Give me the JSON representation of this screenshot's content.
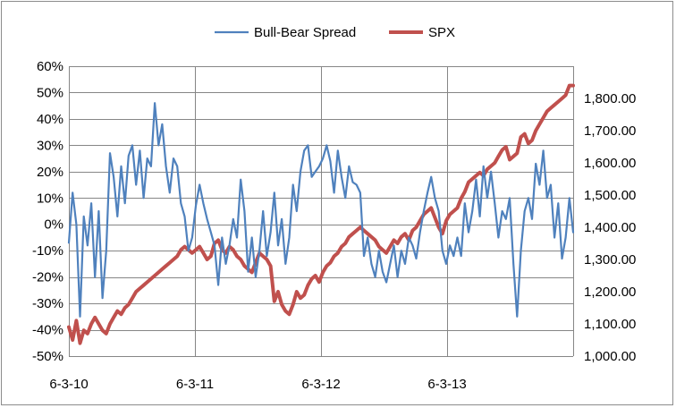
{
  "chart_data": {
    "type": "line",
    "title": "",
    "legend": {
      "placement": "top-center"
    },
    "grid": true,
    "x_labels": [
      "6-3-10",
      "6-3-11",
      "6-3-12",
      "6-3-13"
    ],
    "y_left": {
      "ylim": [
        -50,
        60
      ],
      "tick_values": [
        60,
        50,
        40,
        30,
        20,
        10,
        0,
        -10,
        -20,
        -30,
        -40,
        -50
      ],
      "tick_labels": [
        "60%",
        "50%",
        "40%",
        "30%",
        "20%",
        "10%",
        "0%",
        "-10%",
        "-20%",
        "-30%",
        "-40%",
        "-50%"
      ]
    },
    "y_right": {
      "ylim": [
        1000,
        1900
      ],
      "tick_values": [
        1800,
        1700,
        1600,
        1500,
        1400,
        1300,
        1200,
        1100,
        1000
      ],
      "tick_labels": [
        "1,800.00",
        "1,700.00",
        "1,600.00",
        "1,500.00",
        "1,400.00",
        "1,300.00",
        "1,200.00",
        "1,100.00",
        "1,000.00"
      ]
    },
    "x_range": [
      0,
      4.05
    ],
    "series": [
      {
        "name": "Bull-Bear Spread",
        "axis": "left",
        "color": "#4f81bd",
        "points": [
          [
            0.0,
            -7
          ],
          [
            0.03,
            12
          ],
          [
            0.06,
            0
          ],
          [
            0.09,
            -35
          ],
          [
            0.12,
            3
          ],
          [
            0.15,
            -8
          ],
          [
            0.18,
            8
          ],
          [
            0.21,
            -20
          ],
          [
            0.24,
            5
          ],
          [
            0.27,
            -28
          ],
          [
            0.3,
            -10
          ],
          [
            0.33,
            27
          ],
          [
            0.36,
            18
          ],
          [
            0.39,
            3
          ],
          [
            0.42,
            22
          ],
          [
            0.45,
            8
          ],
          [
            0.48,
            26
          ],
          [
            0.51,
            30
          ],
          [
            0.54,
            15
          ],
          [
            0.57,
            28
          ],
          [
            0.6,
            10
          ],
          [
            0.63,
            25
          ],
          [
            0.66,
            22
          ],
          [
            0.69,
            46
          ],
          [
            0.72,
            30
          ],
          [
            0.75,
            38
          ],
          [
            0.78,
            22
          ],
          [
            0.81,
            12
          ],
          [
            0.84,
            25
          ],
          [
            0.87,
            22
          ],
          [
            0.9,
            8
          ],
          [
            0.93,
            3
          ],
          [
            0.96,
            -10
          ],
          [
            0.99,
            -5
          ],
          [
            1.02,
            7
          ],
          [
            1.05,
            15
          ],
          [
            1.08,
            8
          ],
          [
            1.11,
            2
          ],
          [
            1.14,
            -3
          ],
          [
            1.17,
            -8
          ],
          [
            1.2,
            -23
          ],
          [
            1.23,
            -5
          ],
          [
            1.26,
            -15
          ],
          [
            1.29,
            -8
          ],
          [
            1.32,
            2
          ],
          [
            1.35,
            -5
          ],
          [
            1.38,
            17
          ],
          [
            1.41,
            5
          ],
          [
            1.44,
            -18
          ],
          [
            1.47,
            -5
          ],
          [
            1.5,
            -20
          ],
          [
            1.53,
            -10
          ],
          [
            1.56,
            5
          ],
          [
            1.59,
            -12
          ],
          [
            1.62,
            -3
          ],
          [
            1.65,
            12
          ],
          [
            1.68,
            -8
          ],
          [
            1.71,
            2
          ],
          [
            1.74,
            -15
          ],
          [
            1.77,
            -5
          ],
          [
            1.8,
            15
          ],
          [
            1.83,
            5
          ],
          [
            1.86,
            20
          ],
          [
            1.89,
            28
          ],
          [
            1.92,
            30
          ],
          [
            1.95,
            18
          ],
          [
            1.98,
            20
          ],
          [
            2.01,
            22
          ],
          [
            2.04,
            25
          ],
          [
            2.07,
            30
          ],
          [
            2.1,
            24
          ],
          [
            2.13,
            12
          ],
          [
            2.16,
            28
          ],
          [
            2.19,
            18
          ],
          [
            2.22,
            10
          ],
          [
            2.25,
            22
          ],
          [
            2.28,
            16
          ],
          [
            2.31,
            15
          ],
          [
            2.34,
            12
          ],
          [
            2.37,
            -12
          ],
          [
            2.4,
            -5
          ],
          [
            2.43,
            -15
          ],
          [
            2.46,
            -20
          ],
          [
            2.49,
            -10
          ],
          [
            2.52,
            -18
          ],
          [
            2.55,
            -22
          ],
          [
            2.58,
            -15
          ],
          [
            2.61,
            -8
          ],
          [
            2.64,
            -20
          ],
          [
            2.67,
            -10
          ],
          [
            2.7,
            -15
          ],
          [
            2.73,
            -5
          ],
          [
            2.76,
            -8
          ],
          [
            2.79,
            -13
          ],
          [
            2.82,
            -3
          ],
          [
            2.85,
            5
          ],
          [
            2.88,
            12
          ],
          [
            2.91,
            18
          ],
          [
            2.94,
            10
          ],
          [
            2.97,
            5
          ],
          [
            3.0,
            -10
          ],
          [
            3.03,
            -15
          ],
          [
            3.06,
            -8
          ],
          [
            3.09,
            -12
          ],
          [
            3.12,
            -5
          ],
          [
            3.15,
            -12
          ],
          [
            3.18,
            8
          ],
          [
            3.21,
            -3
          ],
          [
            3.24,
            5
          ],
          [
            3.27,
            17
          ],
          [
            3.3,
            3
          ],
          [
            3.33,
            22
          ],
          [
            3.36,
            10
          ],
          [
            3.39,
            20
          ],
          [
            3.42,
            8
          ],
          [
            3.45,
            -5
          ],
          [
            3.48,
            5
          ],
          [
            3.51,
            2
          ],
          [
            3.54,
            10
          ],
          [
            3.57,
            -15
          ],
          [
            3.6,
            -35
          ],
          [
            3.63,
            -10
          ],
          [
            3.66,
            5
          ],
          [
            3.69,
            10
          ],
          [
            3.72,
            2
          ],
          [
            3.75,
            23
          ],
          [
            3.78,
            15
          ],
          [
            3.81,
            28
          ],
          [
            3.84,
            10
          ],
          [
            3.87,
            15
          ],
          [
            3.9,
            -5
          ],
          [
            3.93,
            8
          ],
          [
            3.96,
            -13
          ],
          [
            3.99,
            -5
          ],
          [
            4.02,
            10
          ],
          [
            4.05,
            -3
          ]
        ]
      },
      {
        "name": "SPX",
        "axis": "right",
        "color": "#c0504d",
        "points": [
          [
            0.0,
            1090
          ],
          [
            0.03,
            1050
          ],
          [
            0.06,
            1110
          ],
          [
            0.09,
            1040
          ],
          [
            0.12,
            1080
          ],
          [
            0.15,
            1070
          ],
          [
            0.18,
            1100
          ],
          [
            0.21,
            1120
          ],
          [
            0.24,
            1100
          ],
          [
            0.27,
            1080
          ],
          [
            0.3,
            1070
          ],
          [
            0.33,
            1100
          ],
          [
            0.36,
            1120
          ],
          [
            0.39,
            1140
          ],
          [
            0.42,
            1130
          ],
          [
            0.45,
            1150
          ],
          [
            0.48,
            1160
          ],
          [
            0.51,
            1180
          ],
          [
            0.54,
            1200
          ],
          [
            0.57,
            1210
          ],
          [
            0.6,
            1220
          ],
          [
            0.63,
            1230
          ],
          [
            0.66,
            1240
          ],
          [
            0.69,
            1250
          ],
          [
            0.72,
            1260
          ],
          [
            0.75,
            1270
          ],
          [
            0.78,
            1280
          ],
          [
            0.81,
            1290
          ],
          [
            0.84,
            1300
          ],
          [
            0.87,
            1310
          ],
          [
            0.9,
            1330
          ],
          [
            0.93,
            1340
          ],
          [
            0.96,
            1330
          ],
          [
            0.99,
            1320
          ],
          [
            1.02,
            1330
          ],
          [
            1.05,
            1340
          ],
          [
            1.08,
            1320
          ],
          [
            1.11,
            1300
          ],
          [
            1.14,
            1310
          ],
          [
            1.17,
            1350
          ],
          [
            1.2,
            1360
          ],
          [
            1.23,
            1330
          ],
          [
            1.26,
            1320
          ],
          [
            1.29,
            1340
          ],
          [
            1.32,
            1330
          ],
          [
            1.35,
            1310
          ],
          [
            1.38,
            1300
          ],
          [
            1.41,
            1280
          ],
          [
            1.44,
            1270
          ],
          [
            1.47,
            1260
          ],
          [
            1.5,
            1290
          ],
          [
            1.53,
            1320
          ],
          [
            1.56,
            1310
          ],
          [
            1.59,
            1300
          ],
          [
            1.62,
            1280
          ],
          [
            1.65,
            1170
          ],
          [
            1.68,
            1200
          ],
          [
            1.71,
            1160
          ],
          [
            1.74,
            1140
          ],
          [
            1.77,
            1130
          ],
          [
            1.8,
            1160
          ],
          [
            1.83,
            1200
          ],
          [
            1.86,
            1180
          ],
          [
            1.89,
            1190
          ],
          [
            1.92,
            1220
          ],
          [
            1.95,
            1240
          ],
          [
            1.98,
            1250
          ],
          [
            2.01,
            1230
          ],
          [
            2.04,
            1260
          ],
          [
            2.07,
            1280
          ],
          [
            2.1,
            1290
          ],
          [
            2.13,
            1310
          ],
          [
            2.16,
            1320
          ],
          [
            2.19,
            1340
          ],
          [
            2.22,
            1350
          ],
          [
            2.25,
            1370
          ],
          [
            2.28,
            1380
          ],
          [
            2.31,
            1390
          ],
          [
            2.34,
            1400
          ],
          [
            2.37,
            1390
          ],
          [
            2.4,
            1380
          ],
          [
            2.43,
            1370
          ],
          [
            2.46,
            1360
          ],
          [
            2.49,
            1340
          ],
          [
            2.52,
            1330
          ],
          [
            2.55,
            1320
          ],
          [
            2.58,
            1340
          ],
          [
            2.61,
            1360
          ],
          [
            2.64,
            1350
          ],
          [
            2.67,
            1370
          ],
          [
            2.7,
            1380
          ],
          [
            2.73,
            1360
          ],
          [
            2.76,
            1390
          ],
          [
            2.79,
            1400
          ],
          [
            2.82,
            1420
          ],
          [
            2.85,
            1440
          ],
          [
            2.88,
            1450
          ],
          [
            2.91,
            1460
          ],
          [
            2.94,
            1430
          ],
          [
            2.97,
            1400
          ],
          [
            3.0,
            1380
          ],
          [
            3.03,
            1420
          ],
          [
            3.06,
            1440
          ],
          [
            3.09,
            1450
          ],
          [
            3.12,
            1460
          ],
          [
            3.15,
            1490
          ],
          [
            3.18,
            1510
          ],
          [
            3.21,
            1540
          ],
          [
            3.24,
            1550
          ],
          [
            3.27,
            1560
          ],
          [
            3.3,
            1570
          ],
          [
            3.33,
            1560
          ],
          [
            3.36,
            1580
          ],
          [
            3.39,
            1590
          ],
          [
            3.42,
            1600
          ],
          [
            3.45,
            1620
          ],
          [
            3.48,
            1640
          ],
          [
            3.51,
            1650
          ],
          [
            3.54,
            1610
          ],
          [
            3.57,
            1620
          ],
          [
            3.6,
            1630
          ],
          [
            3.63,
            1680
          ],
          [
            3.66,
            1690
          ],
          [
            3.69,
            1660
          ],
          [
            3.72,
            1670
          ],
          [
            3.75,
            1700
          ],
          [
            3.78,
            1720
          ],
          [
            3.81,
            1740
          ],
          [
            3.84,
            1760
          ],
          [
            3.87,
            1770
          ],
          [
            3.9,
            1780
          ],
          [
            3.93,
            1790
          ],
          [
            3.96,
            1800
          ],
          [
            3.99,
            1810
          ],
          [
            4.02,
            1840
          ],
          [
            4.05,
            1840
          ]
        ]
      }
    ]
  }
}
